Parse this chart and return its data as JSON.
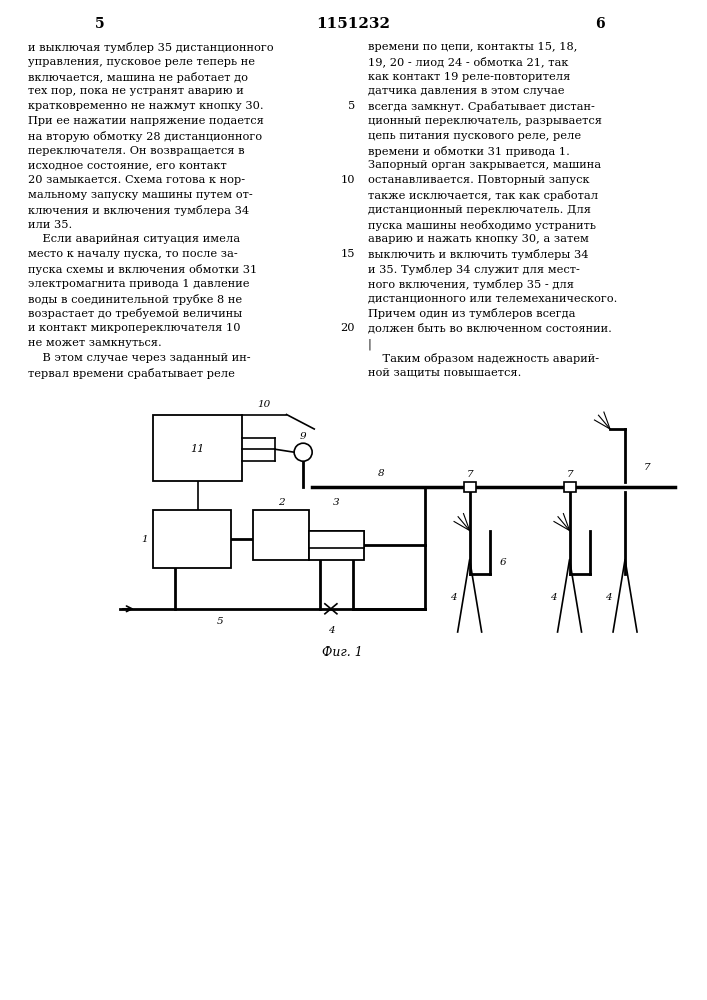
{
  "page_number_left": "5",
  "patent_number": "1151232",
  "page_number_right": "6",
  "bg_color": "#ffffff",
  "text_color": "#000000",
  "left_column_text": [
    "и выключая тумблер 35 дистанционного",
    "управления, пусковое реле теперь не",
    "включается, машина не работает до",
    "тех пор, пока не устранят аварию и",
    "кратковременно не нажмут кнопку 30.",
    "При ее нажатии напряжение подается",
    "на вторую обмотку 28 дистанционного",
    "переключателя. Он возвращается в",
    "исходное состояние, его контакт",
    "20 замыкается. Схема готова к нор-",
    "мальному запуску машины путем от-",
    "ключения и включения тумблера 34",
    "или 35.",
    "    Если аварийная ситуация имела",
    "место к началу пуска, то после за-",
    "пуска схемы и включения обмотки 31",
    "электромагнита привода 1 давление",
    "воды в соединительной трубке 8 не",
    "возрастает до требуемой величины",
    "и контакт микропереключателя 10",
    "не может замкнуться.",
    "    В этом случае через заданный ин-",
    "тервал времени срабатывает реле"
  ],
  "right_column_text": [
    "времени по цепи, контакты 15, 18,",
    "19, 20 - лиод 24 - обмотка 21, так",
    "как контакт 19 реле-повторителя",
    "датчика давления в этом случае",
    "всегда замкнут. Срабатывает дистан-",
    "ционный переключатель, разрывается",
    "цепь питания пускового реле, реле",
    "времени и обмотки 31 привода 1.",
    "Запорный орган закрывается, машина",
    "останавливается. Повторный запуск",
    "также исключается, так как сработал",
    "дистанционный переключатель. Для",
    "пуска машины необходимо устранить",
    "аварию и нажать кнопку 30, а затем",
    "выключить и включить тумблеры 34",
    "и 35. Тумблер 34 служит для мест-",
    "ного включения, тумблер 35 - для",
    "дистанционного или телемеханического.",
    "Причем один из тумблеров всегда",
    "должен быть во включенном состоянии.",
    "|",
    "    Таким образом надежность аварий-",
    "ной защиты повышается."
  ],
  "line_numbers": [
    5,
    10,
    15,
    20
  ],
  "fig_caption": "Фиг. 1",
  "line_color": "#000000"
}
